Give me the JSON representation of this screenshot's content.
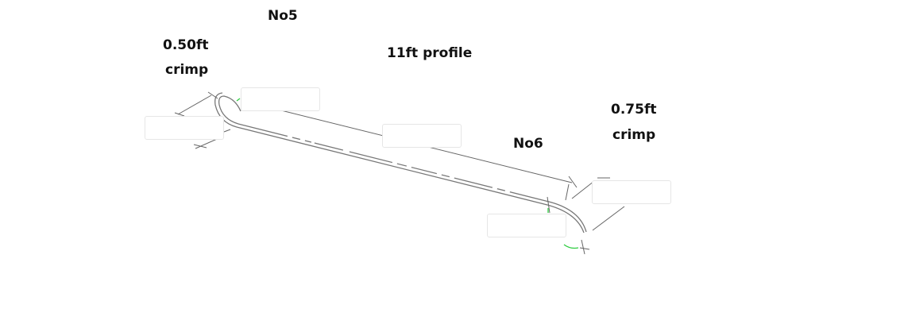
{
  "labels": {
    "no5": "No5",
    "left_length": "0.50ft",
    "left_type": "crimp",
    "profile": "11ft profile",
    "no6": "No6",
    "right_length": "0.75ft",
    "right_type": "crimp"
  },
  "colors": {
    "line": "#777777",
    "dim": "#555555",
    "marker": "#2ecc40"
  }
}
